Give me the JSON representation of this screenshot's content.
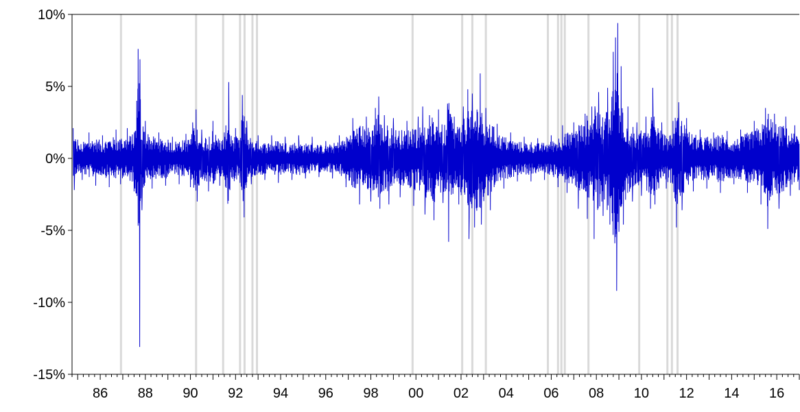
{
  "chart_data": {
    "type": "line",
    "title": "",
    "xlabel": "",
    "ylabel": "",
    "x_start_year": 1984.75,
    "x_end_year": 2017.0,
    "ylim": [
      -15,
      10
    ],
    "y_ticks": [
      {
        "value": 10,
        "label": "10%"
      },
      {
        "value": 5,
        "label": "5%"
      },
      {
        "value": 0,
        "label": "0%"
      },
      {
        "value": -5,
        "label": "-5%"
      },
      {
        "value": -10,
        "label": "-10%"
      },
      {
        "value": -15,
        "label": "-15%"
      }
    ],
    "x_ticks": [
      {
        "year": 1986,
        "label": "86"
      },
      {
        "year": 1988,
        "label": "88"
      },
      {
        "year": 1990,
        "label": "90"
      },
      {
        "year": 1992,
        "label": "92"
      },
      {
        "year": 1994,
        "label": "94"
      },
      {
        "year": 1996,
        "label": "96"
      },
      {
        "year": 1998,
        "label": "98"
      },
      {
        "year": 2000,
        "label": "00"
      },
      {
        "year": 2002,
        "label": "02"
      },
      {
        "year": 2004,
        "label": "04"
      },
      {
        "year": 2006,
        "label": "06"
      },
      {
        "year": 2008,
        "label": "08"
      },
      {
        "year": 2010,
        "label": "10"
      },
      {
        "year": 2012,
        "label": "12"
      },
      {
        "year": 2014,
        "label": "14"
      },
      {
        "year": 2016,
        "label": "16"
      }
    ],
    "series": [
      {
        "color": "#0000cc",
        "points": [
          [
            1984.8,
            2.1
          ],
          [
            1984.85,
            -2.2
          ],
          [
            1985.0,
            1.3
          ],
          [
            1985.2,
            -1.5
          ],
          [
            1985.5,
            1.8
          ],
          [
            1985.8,
            -1.9
          ],
          [
            1986.1,
            1.6
          ],
          [
            1986.4,
            -2.0
          ],
          [
            1986.7,
            2.0
          ],
          [
            1986.9,
            -1.8
          ],
          [
            1987.2,
            2.1
          ],
          [
            1987.5,
            -2.3
          ],
          [
            1987.62,
            4.0
          ],
          [
            1987.68,
            7.6
          ],
          [
            1987.72,
            -4.5
          ],
          [
            1987.75,
            -13.1
          ],
          [
            1987.78,
            4.1
          ],
          [
            1987.85,
            -3.6
          ],
          [
            1988.0,
            2.6
          ],
          [
            1988.3,
            -2.1
          ],
          [
            1988.6,
            1.8
          ],
          [
            1988.9,
            -1.9
          ],
          [
            1989.2,
            1.5
          ],
          [
            1989.5,
            -1.8
          ],
          [
            1989.8,
            1.7
          ],
          [
            1990.0,
            -2.0
          ],
          [
            1990.1,
            2.5
          ],
          [
            1990.25,
            3.4
          ],
          [
            1990.3,
            -3.0
          ],
          [
            1990.5,
            2.0
          ],
          [
            1990.8,
            -2.3
          ],
          [
            1991.0,
            2.6
          ],
          [
            1991.3,
            -1.9
          ],
          [
            1991.5,
            1.8
          ],
          [
            1991.7,
            5.3
          ],
          [
            1991.75,
            -2.2
          ],
          [
            1992.0,
            2.1
          ],
          [
            1992.2,
            -1.7
          ],
          [
            1992.3,
            4.4
          ],
          [
            1992.38,
            -4.1
          ],
          [
            1992.5,
            2.6
          ],
          [
            1992.7,
            -1.8
          ],
          [
            1993.0,
            1.6
          ],
          [
            1993.3,
            -1.5
          ],
          [
            1993.6,
            1.6
          ],
          [
            1993.9,
            -1.7
          ],
          [
            1994.2,
            1.5
          ],
          [
            1994.5,
            -1.5
          ],
          [
            1994.8,
            1.6
          ],
          [
            1995.1,
            -1.4
          ],
          [
            1995.4,
            1.5
          ],
          [
            1995.7,
            -1.3
          ],
          [
            1996.0,
            1.2
          ],
          [
            1996.3,
            -1.4
          ],
          [
            1996.6,
            1.6
          ],
          [
            1996.9,
            -2.0
          ],
          [
            1997.2,
            2.8
          ],
          [
            1997.5,
            -3.2
          ],
          [
            1997.8,
            2.9
          ],
          [
            1998.0,
            -3.0
          ],
          [
            1998.2,
            3.5
          ],
          [
            1998.35,
            4.3
          ],
          [
            1998.4,
            -3.5
          ],
          [
            1998.6,
            3.0
          ],
          [
            1998.8,
            -3.2
          ],
          [
            1999.0,
            2.8
          ],
          [
            1999.3,
            -2.7
          ],
          [
            1999.6,
            2.6
          ],
          [
            1999.9,
            -3.3
          ],
          [
            2000.1,
            2.9
          ],
          [
            2000.3,
            3.6
          ],
          [
            2000.4,
            -3.9
          ],
          [
            2000.6,
            3.0
          ],
          [
            2000.8,
            -4.3
          ],
          [
            2001.0,
            3.4
          ],
          [
            2001.2,
            -3.1
          ],
          [
            2001.4,
            3.8
          ],
          [
            2001.45,
            -5.8
          ],
          [
            2001.7,
            2.9
          ],
          [
            2001.9,
            -3.2
          ],
          [
            2002.1,
            3.6
          ],
          [
            2002.3,
            4.8
          ],
          [
            2002.35,
            -5.6
          ],
          [
            2002.5,
            4.5
          ],
          [
            2002.6,
            -4.8
          ],
          [
            2002.85,
            5.9
          ],
          [
            2002.9,
            -4.6
          ],
          [
            2003.1,
            3.5
          ],
          [
            2003.3,
            -3.6
          ],
          [
            2003.6,
            2.4
          ],
          [
            2003.9,
            -2.1
          ],
          [
            2004.2,
            1.8
          ],
          [
            2004.5,
            -1.6
          ],
          [
            2004.8,
            1.5
          ],
          [
            2005.1,
            -1.6
          ],
          [
            2005.4,
            1.4
          ],
          [
            2005.7,
            -1.5
          ],
          [
            2006.0,
            1.6
          ],
          [
            2006.3,
            -2.0
          ],
          [
            2006.5,
            2.3
          ],
          [
            2006.7,
            -2.4
          ],
          [
            2007.0,
            2.5
          ],
          [
            2007.2,
            -3.5
          ],
          [
            2007.5,
            3.1
          ],
          [
            2007.6,
            -4.2
          ],
          [
            2007.8,
            3.6
          ],
          [
            2007.9,
            -5.6
          ],
          [
            2008.1,
            4.6
          ],
          [
            2008.3,
            -4.0
          ],
          [
            2008.5,
            4.9
          ],
          [
            2008.6,
            -4.6
          ],
          [
            2008.75,
            7.4
          ],
          [
            2008.82,
            -5.9
          ],
          [
            2008.85,
            8.4
          ],
          [
            2008.9,
            -9.2
          ],
          [
            2008.95,
            9.4
          ],
          [
            2009.0,
            -5.1
          ],
          [
            2009.1,
            6.4
          ],
          [
            2009.2,
            -4.6
          ],
          [
            2009.4,
            3.6
          ],
          [
            2009.6,
            -3.0
          ],
          [
            2009.8,
            2.5
          ],
          [
            2010.0,
            -2.6
          ],
          [
            2010.2,
            2.9
          ],
          [
            2010.4,
            -3.5
          ],
          [
            2010.5,
            4.9
          ],
          [
            2010.6,
            -3.2
          ],
          [
            2010.9,
            2.5
          ],
          [
            2011.1,
            -2.1
          ],
          [
            2011.4,
            2.6
          ],
          [
            2011.55,
            -4.8
          ],
          [
            2011.65,
            3.9
          ],
          [
            2011.8,
            -3.6
          ],
          [
            2012.0,
            2.8
          ],
          [
            2012.3,
            -2.3
          ],
          [
            2012.6,
            2.0
          ],
          [
            2012.9,
            -2.1
          ],
          [
            2013.2,
            1.8
          ],
          [
            2013.5,
            -2.4
          ],
          [
            2013.8,
            1.9
          ],
          [
            2014.1,
            -1.8
          ],
          [
            2014.4,
            2.0
          ],
          [
            2014.7,
            -2.4
          ],
          [
            2015.0,
            2.6
          ],
          [
            2015.3,
            -3.2
          ],
          [
            2015.5,
            3.5
          ],
          [
            2015.6,
            -4.9
          ],
          [
            2015.9,
            3.1
          ],
          [
            2016.1,
            -3.5
          ],
          [
            2016.4,
            2.9
          ],
          [
            2016.6,
            -2.6
          ],
          [
            2016.8,
            2.3
          ],
          [
            2017.0,
            -2.2
          ]
        ]
      }
    ],
    "recession_lines": [
      1986.92,
      1990.25,
      1991.45,
      1992.2,
      1992.4,
      1992.75,
      1992.95,
      1999.85,
      2002.05,
      2002.5,
      2003.1,
      2005.85,
      2006.3,
      2006.45,
      2006.6,
      2007.65,
      2009.9,
      2011.15,
      2011.35,
      2011.6
    ],
    "grid": false,
    "legend": "none"
  }
}
